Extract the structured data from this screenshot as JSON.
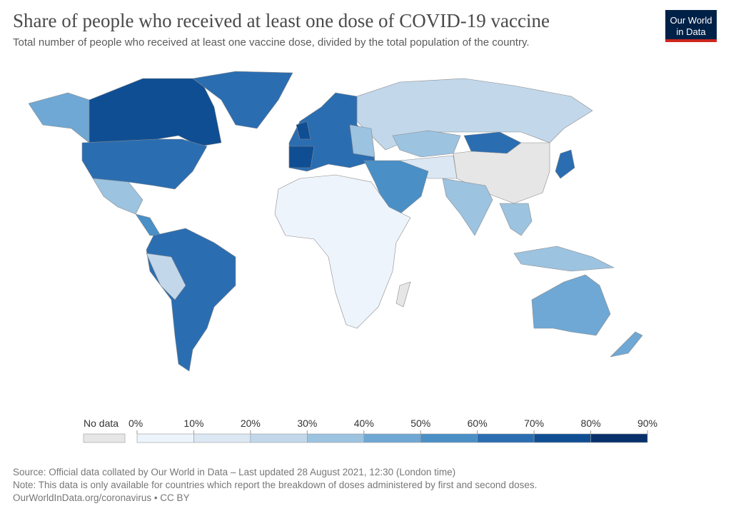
{
  "header": {
    "title": "Share of people who received at least one dose of COVID-19 vaccine",
    "subtitle": "Total number of people who received at least one vaccine dose, divided by the total population of the country.",
    "logo": [
      "Our World",
      "in Data"
    ]
  },
  "legend": {
    "no_data": "No data",
    "no_data_color": "#e6e6e6",
    "ticks": [
      {
        "value": 0,
        "label": "0%"
      },
      {
        "value": 10,
        "label": "10%"
      },
      {
        "value": 20,
        "label": "20%"
      },
      {
        "value": 30,
        "label": "30%"
      },
      {
        "value": 40,
        "label": "40%"
      },
      {
        "value": 50,
        "label": "50%"
      },
      {
        "value": 60,
        "label": "60%"
      },
      {
        "value": 70,
        "label": "70%"
      },
      {
        "value": 80,
        "label": "80%"
      },
      {
        "value": 90,
        "label": "90%"
      }
    ],
    "colors": [
      "#eef4fb",
      "#dbe7f3",
      "#c2d7ea",
      "#9cc3e0",
      "#6fa8d4",
      "#4a8fc6",
      "#2b6db1",
      "#0f4e93",
      "#08306b"
    ]
  },
  "footer": [
    "Source: Official data collated by Our World in Data – Last updated 28 August 2021, 12:30 (London time)",
    "Note: This data is only available for countries which report the breakdown of doses administered by first and second doses.",
    "OurWorldInData.org/coronavirus • CC BY"
  ]
}
